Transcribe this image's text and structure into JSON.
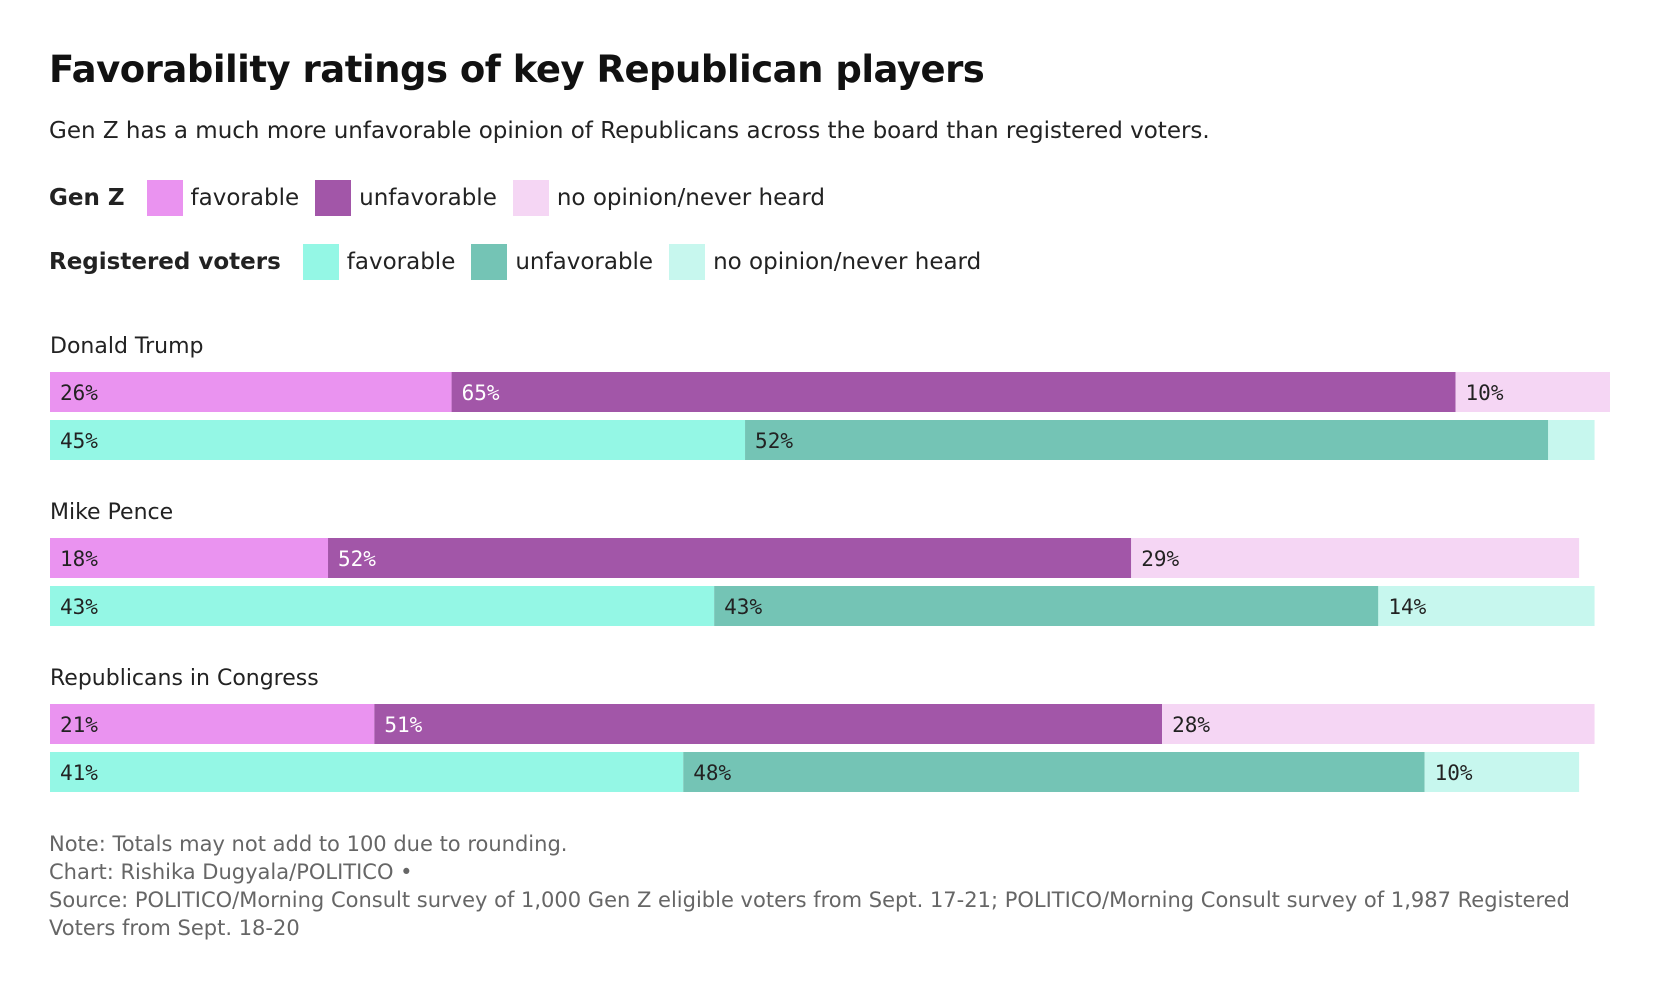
{
  "title": "Favorability ratings of key Republican players",
  "subtitle": "Gen Z has a much more unfavorable opinion of Republicans across the board than registered voters.",
  "legend": {
    "genz": {
      "title": "Gen Z",
      "items": [
        {
          "label": "favorable",
          "color": "#ea93f0"
        },
        {
          "label": "unfavorable",
          "color": "#a256a8"
        },
        {
          "label": "no opinion/never heard",
          "color": "#f5d6f4"
        }
      ]
    },
    "rv": {
      "title": "Registered voters",
      "items": [
        {
          "label": "favorable",
          "color": "#94f7e5"
        },
        {
          "label": "unfavorable",
          "color": "#74c4b5"
        },
        {
          "label": "no opinion/never heard",
          "color": "#c7f7ee"
        }
      ]
    }
  },
  "chart_data": {
    "type": "bar",
    "orientation": "horizontal",
    "stacked": true,
    "categories": [
      "Donald Trump",
      "Mike Pence",
      "Republicans in Congress"
    ],
    "segments": [
      "favorable",
      "unfavorable",
      "no opinion/never heard"
    ],
    "series": [
      {
        "name": "Gen Z",
        "colors": [
          "#ea93f0",
          "#a256a8",
          "#f5d6f4"
        ],
        "values": [
          [
            26,
            65,
            10
          ],
          [
            18,
            52,
            29
          ],
          [
            21,
            51,
            28
          ]
        ],
        "labels": [
          [
            "26%",
            "65%",
            "10%"
          ],
          [
            "18%",
            "52%",
            "29%"
          ],
          [
            "21%",
            "51%",
            "28%"
          ]
        ]
      },
      {
        "name": "Registered voters",
        "colors": [
          "#94f7e5",
          "#74c4b5",
          "#c7f7ee"
        ],
        "values": [
          [
            45,
            52,
            3
          ],
          [
            43,
            43,
            14
          ],
          [
            41,
            48,
            10
          ]
        ],
        "labels": [
          [
            "45%",
            "52%",
            ""
          ],
          [
            "43%",
            "43%",
            "14%"
          ],
          [
            "41%",
            "48%",
            "10%"
          ]
        ]
      }
    ],
    "xlim": [
      0,
      101
    ]
  },
  "footer": {
    "note": "Note: Totals may not add to 100 due to rounding.",
    "credit": "Chart: Rishika Dugyala/POLITICO •",
    "source": "Source: POLITICO/Morning Consult survey of 1,000 Gen Z eligible voters from Sept. 17-21; POLITICO/Morning Consult survey of 1,987 Registered Voters from Sept. 18-20"
  }
}
